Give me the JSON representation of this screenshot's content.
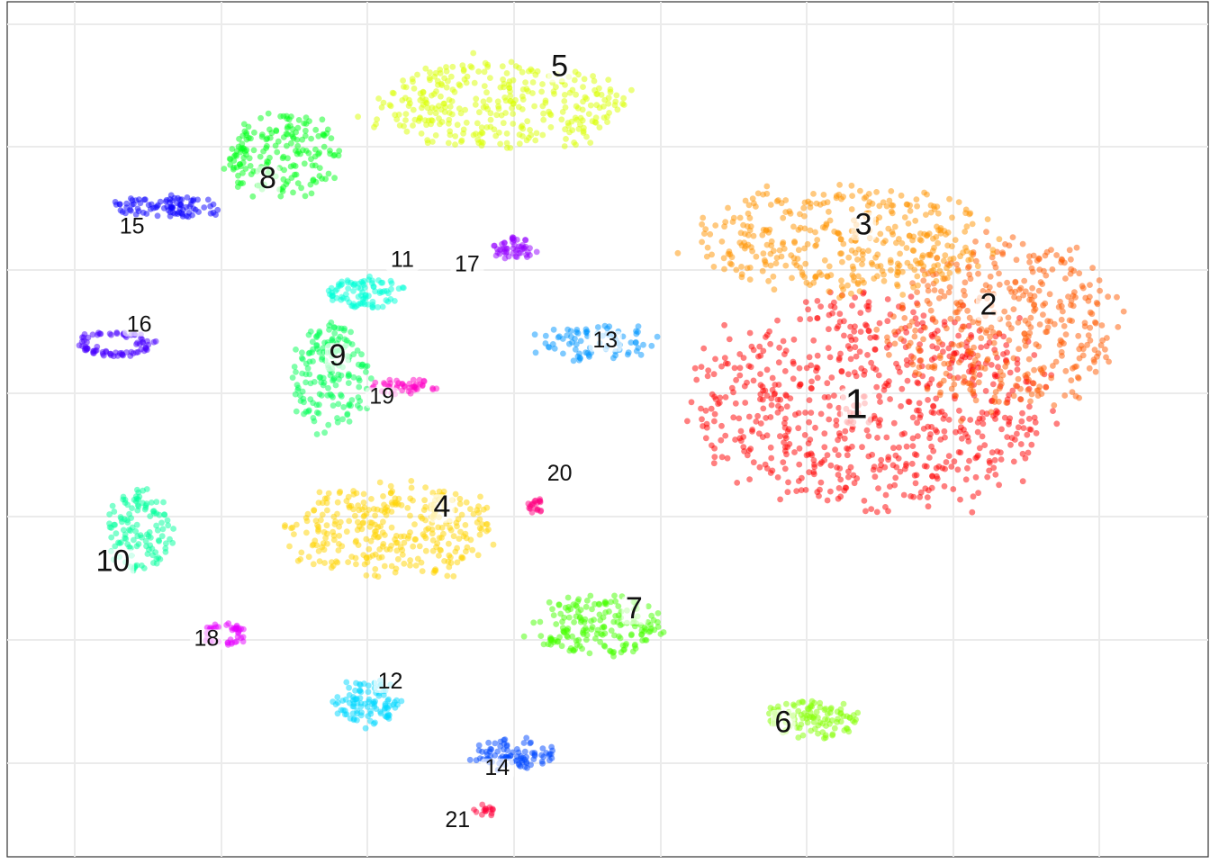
{
  "chart_data": {
    "type": "scatter",
    "title": "",
    "xlabel": "",
    "ylabel": "",
    "xlim": [
      0,
      100
    ],
    "ylim": [
      0,
      100
    ],
    "grid": true,
    "legend": "none",
    "clusters": [
      {
        "label": "1",
        "color": "#FF0000",
        "cx": 72,
        "cy": 53,
        "shape": "blob",
        "w": 33,
        "h": 27,
        "n": 700,
        "label_x": 70.7,
        "label_y": 51.3,
        "label_size": "large"
      },
      {
        "label": "2",
        "color": "#FF5A00",
        "cx": 83,
        "cy": 62,
        "shape": "blob",
        "w": 21,
        "h": 22,
        "n": 380,
        "label_x": 81.7,
        "label_y": 63.4,
        "label_size": "medium"
      },
      {
        "label": "3",
        "color": "#FF9400",
        "cx": 70,
        "cy": 72,
        "shape": "blob",
        "w": 27,
        "h": 14,
        "n": 380,
        "label_x": 71.3,
        "label_y": 72.8,
        "label_size": "medium"
      },
      {
        "label": "4",
        "color": "#FFD300",
        "cx": 32,
        "cy": 38,
        "shape": "blob",
        "w": 19,
        "h": 12,
        "n": 320,
        "label_x": 36.2,
        "label_y": 39.8,
        "label_size": "medium"
      },
      {
        "label": "5",
        "color": "#D9FF00",
        "cx": 41,
        "cy": 88,
        "shape": "blob",
        "w": 24,
        "h": 11,
        "n": 330,
        "label_x": 46.0,
        "label_y": 91.3,
        "label_size": "medium"
      },
      {
        "label": "6",
        "color": "#84FF00",
        "cx": 67,
        "cy": 16,
        "shape": "blob",
        "w": 9,
        "h": 5,
        "n": 110,
        "label_x": 64.6,
        "label_y": 14.6,
        "label_size": "medium"
      },
      {
        "label": "7",
        "color": "#45FF00",
        "cx": 49,
        "cy": 27,
        "shape": "blob",
        "w": 12,
        "h": 8,
        "n": 180,
        "label_x": 52.2,
        "label_y": 27.9,
        "label_size": "medium"
      },
      {
        "label": "8",
        "color": "#00FF1A",
        "cx": 23,
        "cy": 82,
        "shape": "blob",
        "w": 11,
        "h": 11,
        "n": 180,
        "label_x": 21.7,
        "label_y": 78.2,
        "label_size": "medium"
      },
      {
        "label": "9",
        "color": "#00FF55",
        "cx": 27,
        "cy": 56,
        "shape": "blob",
        "w": 7,
        "h": 14,
        "n": 170,
        "label_x": 27.5,
        "label_y": 57.5,
        "label_size": "medium"
      },
      {
        "label": "10",
        "color": "#00FF9B",
        "cx": 11,
        "cy": 38,
        "shape": "blob",
        "w": 6,
        "h": 11,
        "n": 120,
        "label_x": 8.8,
        "label_y": 33.4,
        "label_size": "medium"
      },
      {
        "label": "11",
        "color": "#00FFD8",
        "cx": 30,
        "cy": 66,
        "shape": "blob",
        "w": 7,
        "h": 4,
        "n": 90,
        "label_x": 32.9,
        "label_y": 69.0,
        "label_size": "small"
      },
      {
        "label": "12",
        "color": "#00D7FF",
        "cx": 30,
        "cy": 18,
        "shape": "blob",
        "w": 6,
        "h": 6,
        "n": 100,
        "label_x": 31.9,
        "label_y": 19.7,
        "label_size": "small"
      },
      {
        "label": "13",
        "color": "#0096FF",
        "cx": 49,
        "cy": 60,
        "shape": "blob",
        "w": 11,
        "h": 5,
        "n": 80,
        "label_x": 49.8,
        "label_y": 59.6,
        "label_size": "small"
      },
      {
        "label": "14",
        "color": "#0047FF",
        "cx": 42,
        "cy": 12,
        "shape": "blob",
        "w": 8,
        "h": 4,
        "n": 90,
        "label_x": 40.8,
        "label_y": 9.6,
        "label_size": "small"
      },
      {
        "label": "15",
        "color": "#0A00FF",
        "cx": 13,
        "cy": 76,
        "shape": "blob",
        "w": 10,
        "h": 3,
        "n": 90,
        "label_x": 10.4,
        "label_y": 72.9,
        "label_size": "small"
      },
      {
        "label": "16",
        "color": "#4800FF",
        "cx": 9,
        "cy": 60,
        "shape": "ring",
        "w": 7,
        "h": 3,
        "n": 80,
        "label_x": 11.0,
        "label_y": 61.4,
        "label_size": "small"
      },
      {
        "label": "17",
        "color": "#9400FF",
        "cx": 42,
        "cy": 71,
        "shape": "blob",
        "w": 4,
        "h": 3,
        "n": 50,
        "label_x": 38.3,
        "label_y": 68.5,
        "label_size": "small"
      },
      {
        "label": "18",
        "color": "#E600FF",
        "cx": 18,
        "cy": 26,
        "shape": "ring",
        "w": 3.5,
        "h": 3,
        "n": 45,
        "label_x": 16.6,
        "label_y": 24.7,
        "label_size": "small"
      },
      {
        "label": "19",
        "color": "#FF00C6",
        "cx": 33,
        "cy": 55,
        "shape": "blob",
        "w": 6,
        "h": 2,
        "n": 45,
        "label_x": 31.2,
        "label_y": 53.0,
        "label_size": "small"
      },
      {
        "label": "20",
        "color": "#FF0080",
        "cx": 44,
        "cy": 41,
        "shape": "blob",
        "w": 1.5,
        "h": 2,
        "n": 20,
        "label_x": 46.0,
        "label_y": 44.0,
        "label_size": "small"
      },
      {
        "label": "21",
        "color": "#FF003A",
        "cx": 39.8,
        "cy": 5.5,
        "shape": "blob",
        "w": 2,
        "h": 1.5,
        "n": 15,
        "label_x": 37.5,
        "label_y": 3.5,
        "label_size": "small"
      }
    ]
  }
}
